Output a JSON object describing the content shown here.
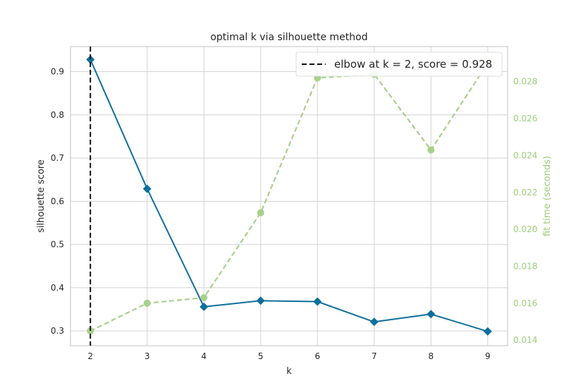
{
  "chart_data": {
    "type": "line",
    "title": "optimal k via silhouette method",
    "xlabel": "k",
    "ylabel": "silhouette score",
    "ylabel_right": "fit time (seconds)",
    "x": [
      2,
      3,
      4,
      5,
      6,
      7,
      8,
      9
    ],
    "xlim": [
      1.65,
      9.35
    ],
    "ylim": [
      0.266,
      0.958
    ],
    "ylim_right": [
      0.0137,
      0.0299
    ],
    "yticks": [
      "0.3",
      "0.4",
      "0.5",
      "0.6",
      "0.7",
      "0.8",
      "0.9"
    ],
    "yticks_right": [
      "0.014",
      "0.016",
      "0.018",
      "0.020",
      "0.022",
      "0.024",
      "0.026",
      "0.028"
    ],
    "xticks": [
      "2",
      "3",
      "4",
      "5",
      "6",
      "7",
      "8",
      "9"
    ],
    "grid": true,
    "legend_position": "top-right",
    "series": [
      {
        "name": "",
        "axis": "left",
        "color": "#0e6f9c",
        "marker": "diamond",
        "line_style": "solid",
        "values": [
          0.928,
          0.629,
          0.356,
          0.37,
          0.368,
          0.321,
          0.339,
          0.299
        ]
      },
      {
        "name": "",
        "axis": "right",
        "color": "#a8d08d",
        "marker": "circle",
        "line_style": "dashed",
        "values": [
          0.0145,
          0.016,
          0.0163,
          0.0209,
          0.0282,
          0.0284,
          0.0243,
          0.029
        ]
      }
    ],
    "annotations": [
      {
        "type": "vline",
        "x": 2,
        "color": "#111111",
        "line_style": "dashed",
        "label": "elbow at k = 2, score = 0.928"
      }
    ]
  }
}
